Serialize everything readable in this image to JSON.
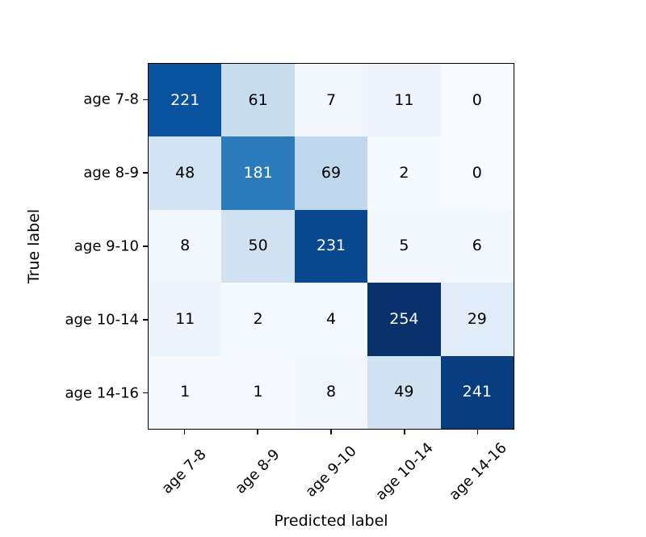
{
  "chart_data": {
    "type": "heatmap",
    "subtype": "confusion-matrix",
    "title": "",
    "xlabel": "Predicted label",
    "ylabel": "True label",
    "categories": [
      "age 7-8",
      "age 8-9",
      "age 9-10",
      "age 10-14",
      "age 14-16"
    ],
    "x_tick_labels": [
      "age 7-8",
      "age 8-9",
      "age 9-10",
      "age 10-14",
      "age 14-16"
    ],
    "y_tick_labels": [
      "age 7-8",
      "age 8-9",
      "age 9-10",
      "age 10-14",
      "age 14-16"
    ],
    "matrix": [
      [
        221,
        61,
        7,
        11,
        0
      ],
      [
        48,
        181,
        69,
        2,
        0
      ],
      [
        8,
        50,
        231,
        5,
        6
      ],
      [
        11,
        2,
        4,
        254,
        29
      ],
      [
        1,
        1,
        8,
        49,
        241
      ]
    ],
    "colormap": "Blues",
    "colormap_stops": [
      "#f7fbff",
      "#deebf7",
      "#c6dbef",
      "#9ecae1",
      "#6baed6",
      "#4292c6",
      "#2171b5",
      "#08519c",
      "#08306b"
    ],
    "vmin": 0,
    "vmax": 254,
    "text_color_threshold": 127,
    "cell_text_color_light_bg": "#000000",
    "cell_text_color_dark_bg": "#ffffff",
    "x_tick_rotation_deg": 45,
    "grid": false,
    "legend": "none",
    "colorbar": false,
    "background_color": "#ffffff",
    "frame_color": "#000000"
  }
}
